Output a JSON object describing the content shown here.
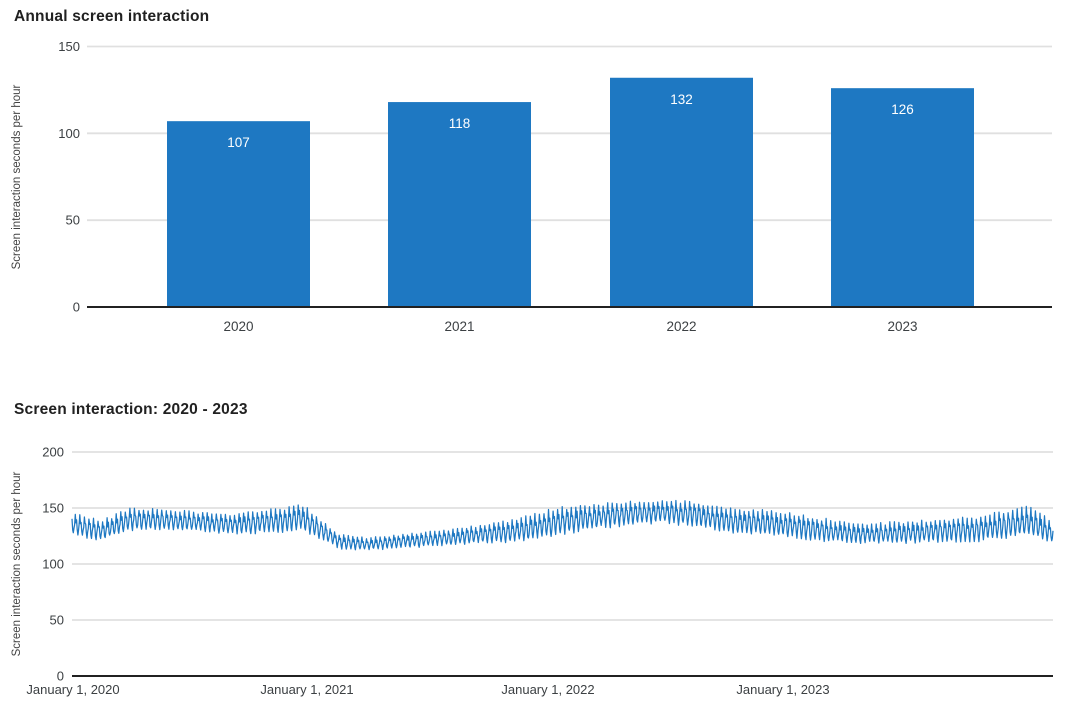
{
  "colors": {
    "accent_blue": "#1E78C2",
    "grid": "#e0e0e0",
    "axis_line": "#212121",
    "title_text": "#212121",
    "tick_text": "#3c4043",
    "ylabel_text": "#424242",
    "bar_value_label": "#ffffff",
    "background": "#ffffff"
  },
  "chart_data": [
    {
      "type": "bar",
      "title": "Annual screen interaction",
      "categories": [
        "2020",
        "2021",
        "2022",
        "2023"
      ],
      "values": [
        107,
        118,
        132,
        126
      ],
      "value_labels": [
        "107",
        "118",
        "132",
        "126"
      ],
      "xlabel": "",
      "ylabel": "Screen interaction seconds per hour",
      "yticks": [
        0,
        50,
        100,
        150
      ],
      "ylim": [
        0,
        150
      ],
      "grid": true,
      "legend": "none",
      "bar_color": "#1E78C2",
      "value_label_position": "inside-top"
    },
    {
      "type": "line",
      "title": "Screen interaction: 2020 - 2023",
      "xlabel": "",
      "ylabel": "Screen interaction seconds per hour",
      "yticks": [
        0,
        50,
        100,
        150,
        200
      ],
      "ylim": [
        0,
        200
      ],
      "xtick_labels": [
        "January 1, 2020",
        "January 1, 2021",
        "January 1, 2022",
        "January 1, 2023"
      ],
      "grid": true,
      "legend": "none",
      "line_color": "#1E78C2",
      "series_description": "Daily screen interaction seconds per hour, strong weekly oscillation, typical range 113-158",
      "envelope_columns": [
        "t_fraction_of_x_axis",
        "center_value",
        "oscillation_amplitude"
      ],
      "envelope": [
        [
          0.0,
          136,
          9
        ],
        [
          0.03,
          130,
          8
        ],
        [
          0.06,
          140,
          9
        ],
        [
          0.09,
          140,
          8
        ],
        [
          0.16,
          136,
          8
        ],
        [
          0.22,
          139,
          10
        ],
        [
          0.232,
          143,
          12
        ],
        [
          0.25,
          133,
          8
        ],
        [
          0.273,
          120,
          6
        ],
        [
          0.3,
          118,
          5
        ],
        [
          0.36,
          122,
          6
        ],
        [
          0.41,
          126,
          7
        ],
        [
          0.46,
          131,
          10
        ],
        [
          0.5,
          139,
          11
        ],
        [
          0.55,
          144,
          10
        ],
        [
          0.6,
          147,
          9
        ],
        [
          0.63,
          145,
          10
        ],
        [
          0.67,
          139,
          10
        ],
        [
          0.72,
          136,
          10
        ],
        [
          0.77,
          130,
          9
        ],
        [
          0.81,
          127,
          8
        ],
        [
          0.86,
          129,
          9
        ],
        [
          0.92,
          131,
          10
        ],
        [
          0.95,
          135,
          11
        ],
        [
          0.975,
          139,
          12
        ],
        [
          1.0,
          128,
          9
        ]
      ],
      "weekly_pattern": [
        0.45,
        -0.6,
        -1.0,
        -0.45,
        0.05,
        1.0,
        0.25
      ],
      "noise_factor": 0.35,
      "n_points": 1510,
      "seed": 42
    }
  ]
}
